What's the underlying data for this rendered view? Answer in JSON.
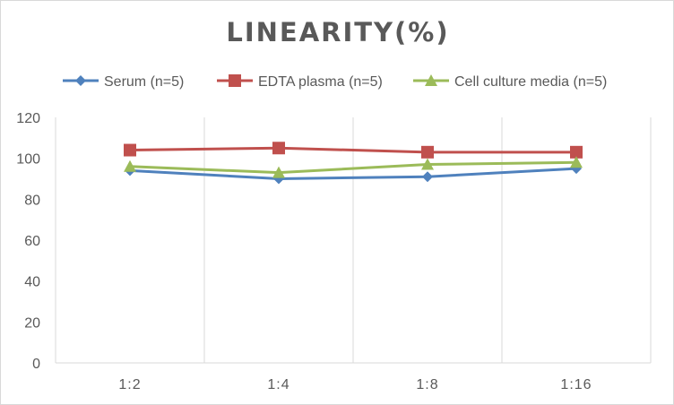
{
  "chart_data": {
    "type": "line",
    "title": "LINEARITY(%)",
    "categories": [
      "1:2",
      "1:4",
      "1:8",
      "1:16"
    ],
    "series": [
      {
        "name": "Serum (n=5)",
        "values": [
          94,
          90,
          91,
          95
        ],
        "color": "#4f81bd",
        "marker": "diamond"
      },
      {
        "name": "EDTA plasma (n=5)",
        "values": [
          104,
          105,
          103,
          103
        ],
        "color": "#c0504d",
        "marker": "square"
      },
      {
        "name": "Cell culture media (n=5)",
        "values": [
          96,
          93,
          97,
          98
        ],
        "color": "#9bbb59",
        "marker": "triangle"
      }
    ],
    "xlabel": "",
    "ylabel": "",
    "ylim": [
      0,
      120
    ],
    "yticks": [
      0,
      20,
      40,
      60,
      80,
      100,
      120
    ],
    "grid": "vertical",
    "legend": "top"
  }
}
